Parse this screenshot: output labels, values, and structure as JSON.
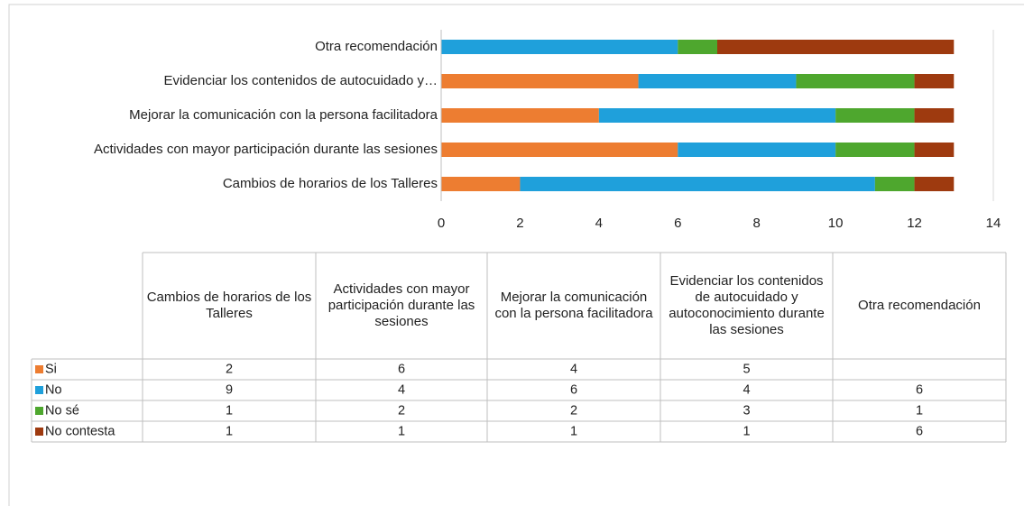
{
  "chart_data": {
    "type": "stacked_barh",
    "categories": [
      "Cambios de horarios de los Talleres",
      "Actividades con mayor participación durante las sesiones",
      "Mejorar la comunicación con la persona facilitadora",
      "Evidenciar los contenidos de autocuidado y autoconocimiento durante las sesiones",
      "Otra recomendación"
    ],
    "axis_labels": [
      "Cambios de horarios de los Talleres",
      "Actividades con mayor participación durante las sesiones",
      "Mejorar la comunicación con la persona facilitadora",
      "Evidenciar los contenidos de autocuidado y…",
      "Otra recomendación"
    ],
    "series": [
      {
        "name": "Si",
        "color": "#ED7D31",
        "values": [
          2,
          6,
          4,
          5,
          null
        ]
      },
      {
        "name": "No",
        "color": "#1FA0DB",
        "values": [
          9,
          4,
          6,
          4,
          6
        ]
      },
      {
        "name": "No sé",
        "color": "#4EA72E",
        "values": [
          1,
          2,
          2,
          3,
          1
        ]
      },
      {
        "name": "No contesta",
        "color": "#9E3A0F",
        "values": [
          1,
          1,
          1,
          1,
          6
        ]
      }
    ],
    "xlim": [
      0,
      14
    ],
    "xticks": [
      0,
      2,
      4,
      6,
      8,
      10,
      12,
      14
    ],
    "grid": false,
    "data_table": true
  }
}
